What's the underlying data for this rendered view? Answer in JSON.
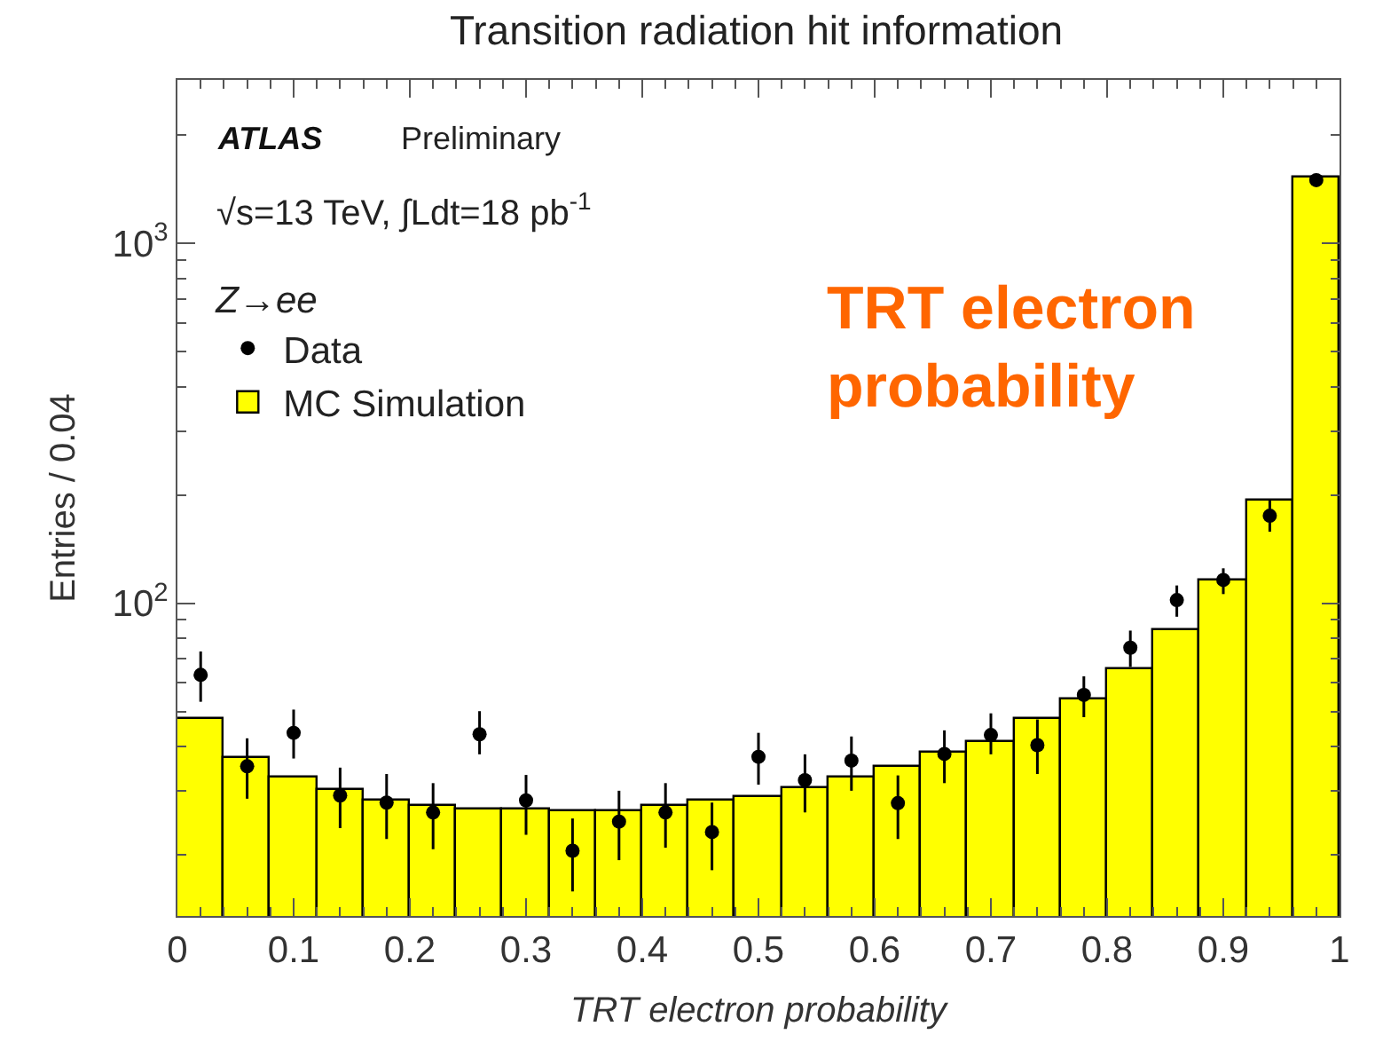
{
  "chart_data": {
    "type": "histogram",
    "title": "Transition radiation hit information",
    "xlabel": "TRT electron probability",
    "ylabel": "Entries / 0.04",
    "legend_title": "Z→ee",
    "annotations": [
      "ATLAS",
      "Preliminary",
      "√s=13 TeV, ∫Ldt=18 pb$^{-1}$",
      "TRT electron probability"
    ],
    "bins": [
      0,
      0.04,
      0.08,
      0.12,
      0.16,
      0.2,
      0.24,
      0.28,
      0.32,
      0.36,
      0.4,
      0.44,
      0.48,
      0.52,
      0.56,
      0.6,
      0.64,
      0.68,
      0.72,
      0.76,
      0.8,
      0.84,
      0.88,
      0.92,
      0.96,
      1
    ],
    "series": [
      {
        "name": "MC Simulation",
        "color": "#ffff00",
        "values": [
          47.4,
          37.0,
          32.9,
          30.1,
          28.4,
          27.2,
          26.8,
          26.7,
          26.4,
          26.4,
          27.2,
          28.2,
          29.0,
          30.5,
          32.6,
          34.9,
          38.3,
          41.1,
          47.4,
          54.0,
          65.5,
          83.8,
          115,
          193,
          1530
        ]
      },
      {
        "type": "scatter",
        "name": "Data",
        "color": "#000000",
        "marker": "circle",
        "x": [
          0.02,
          0.06,
          0.1,
          0.14,
          0.18,
          0.22,
          0.26,
          0.3,
          0.34,
          0.38,
          0.42,
          0.46,
          0.5,
          0.54,
          0.58,
          0.62,
          0.66,
          0.7,
          0.74,
          0.78,
          0.82,
          0.86,
          0.9,
          0.94,
          0.98
        ],
        "values": [
          63.2,
          35.2,
          43.6,
          29.2,
          27.9,
          26.2,
          43.2,
          28.3,
          20.5,
          24.7,
          26.2,
          23.1,
          37.4,
          32.2,
          36.5,
          27.8,
          38.1,
          43.0,
          40.3,
          55.6,
          75.2,
          102,
          116,
          175,
          1500
        ],
        "errors": [
          [
            53.2,
            73.4
          ],
          [
            28.6,
            42.1
          ],
          [
            37.0,
            50.6
          ],
          [
            23.7,
            34.9
          ],
          [
            22.1,
            33.5
          ],
          [
            20.7,
            31.6
          ],
          [
            38.0,
            50.1
          ],
          [
            22.7,
            33.3
          ],
          [
            15.8,
            25.2
          ],
          [
            19.3,
            30.1
          ],
          [
            20.9,
            31.6
          ],
          [
            18.1,
            27.9
          ],
          [
            31.3,
            43.6
          ],
          [
            26.2,
            38.0
          ],
          [
            30.1,
            42.6
          ],
          [
            22.1,
            33.2
          ],
          [
            31.6,
            44.3
          ],
          [
            38.0,
            49.4
          ],
          [
            33.5,
            47.5
          ],
          [
            48.2,
            62.6
          ],
          [
            66.5,
            83.9
          ],
          [
            91.7,
            112
          ],
          [
            106,
            125
          ],
          [
            158,
            194
          ],
          null
        ]
      }
    ],
    "xlim": [
      0,
      1
    ],
    "xticks": [
      0,
      0.1,
      0.2,
      0.3,
      0.4,
      0.5,
      0.6,
      0.7,
      0.8,
      0.9,
      1
    ],
    "ylim": [
      13.5,
      2850
    ],
    "yticks": [
      {
        "value": 100,
        "label": "10$^{2}$"
      },
      {
        "value": 1000,
        "label": "10$^{3}$"
      }
    ],
    "log": true,
    "grid": false,
    "legend": "top left"
  }
}
